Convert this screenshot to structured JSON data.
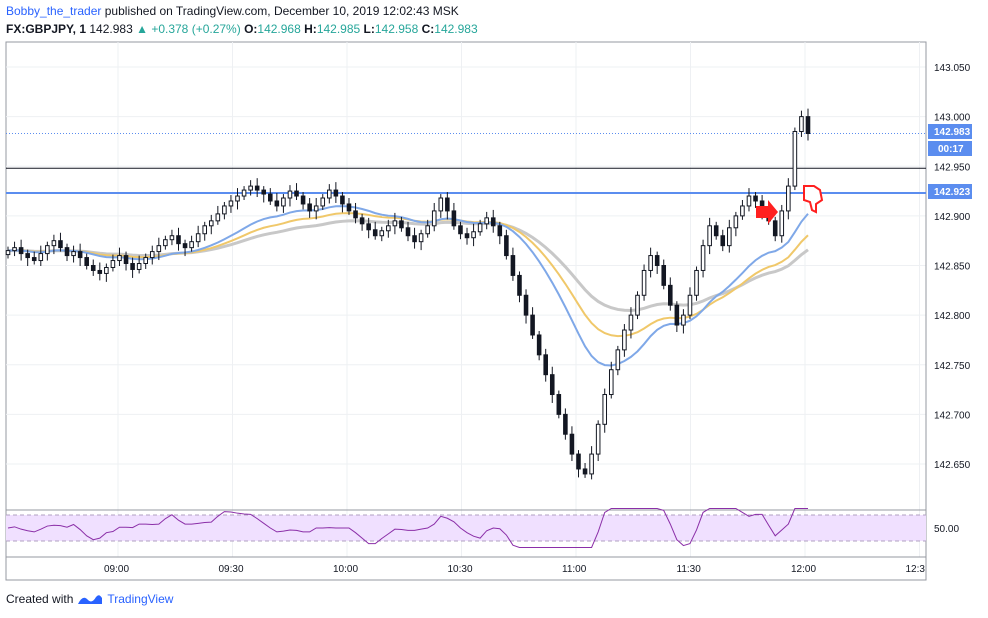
{
  "header": {
    "author": "Bobby_the_trader",
    "published": "published on TradingView.com, December 10, 2019 12:02:43 MSK",
    "symbol": "FX:GBPJPY, 1",
    "last": "142.983",
    "change": "▲ +0.378 (+0.27%)",
    "o_label": "O:",
    "o_value": "142.968",
    "h_label": "H:",
    "h_value": "142.985",
    "l_label": "L:",
    "l_value": "142.958",
    "c_label": "C:",
    "c_value": "142.983"
  },
  "footer": {
    "created_with": "Created with",
    "brand": "TradingView"
  },
  "colors": {
    "up": "#131722",
    "down": "#131722",
    "candle_border": "#131722",
    "support_line": "#5b8def",
    "resistance_line": "#131722",
    "last_price": "#5b8def",
    "ema_fast": "#7fa8e8",
    "ema_mid": "#f0c86a",
    "ema_slow": "#c8c8c8",
    "rsi_line": "#8b2fa8",
    "rsi_band": "#f0e0ff",
    "arrow": "#ff2020"
  },
  "price_axis": {
    "ticks": [
      "143.050",
      "143.000",
      "142.950",
      "142.900",
      "142.850",
      "142.800",
      "142.750",
      "142.700",
      "142.650"
    ],
    "last_tag": "142.983",
    "timer_tag": "00:17",
    "level_tag": "142.923"
  },
  "rsi_axis": {
    "tick": "50.00"
  },
  "time_axis": {
    "ticks": [
      "09:00",
      "09:30",
      "10:00",
      "10:30",
      "11:00",
      "11:30",
      "12:00",
      "12:3"
    ]
  },
  "chart_data": {
    "type": "candlestick",
    "interval": "1 minute",
    "y_range": [
      142.6,
      143.08
    ],
    "levels": {
      "horizontal_support": 142.923,
      "horizontal_line": 142.948,
      "last": 142.983
    },
    "close_approx": [
      142.865,
      142.868,
      142.862,
      142.858,
      142.855,
      142.862,
      142.87,
      142.875,
      142.868,
      142.86,
      142.864,
      142.858,
      142.85,
      142.845,
      142.842,
      142.848,
      142.855,
      142.86,
      142.852,
      142.846,
      142.852,
      142.858,
      142.864,
      142.87,
      142.876,
      142.88,
      142.872,
      142.868,
      142.874,
      142.882,
      142.89,
      142.895,
      142.902,
      142.91,
      142.915,
      142.92,
      142.926,
      142.93,
      142.926,
      142.922,
      142.915,
      142.91,
      142.918,
      142.925,
      142.92,
      142.912,
      142.905,
      142.91,
      142.918,
      142.926,
      142.92,
      142.912,
      142.905,
      142.898,
      142.892,
      142.886,
      142.88,
      142.885,
      142.89,
      142.895,
      142.888,
      142.88,
      142.874,
      142.882,
      142.89,
      142.905,
      142.918,
      142.905,
      142.89,
      142.882,
      142.878,
      142.884,
      142.892,
      142.898,
      142.89,
      142.88,
      142.86,
      142.84,
      142.82,
      142.8,
      142.78,
      142.76,
      142.74,
      142.72,
      142.7,
      142.68,
      142.66,
      142.645,
      142.64,
      142.66,
      142.69,
      142.72,
      142.745,
      142.765,
      142.785,
      142.8,
      142.82,
      142.845,
      142.86,
      142.85,
      142.83,
      142.81,
      142.79,
      142.8,
      142.82,
      142.845,
      142.87,
      142.89,
      142.88,
      142.87,
      142.888,
      142.9,
      142.91,
      142.92,
      142.915,
      142.905,
      142.895,
      142.88,
      142.905,
      142.93,
      142.985,
      143.0,
      142.983
    ],
    "rsi_level": 50
  }
}
